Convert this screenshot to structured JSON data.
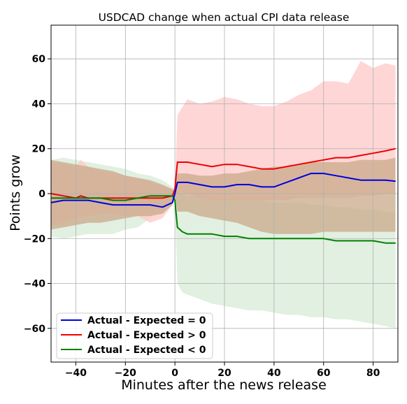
{
  "chart_data": {
    "type": "line",
    "title": "USDCAD change when actual CPI data release",
    "xlabel": "Minutes after the news release",
    "ylabel": "Points grow",
    "xlim": [
      -50,
      90
    ],
    "ylim": [
      -75,
      75
    ],
    "xticks": [
      -40,
      -20,
      0,
      20,
      40,
      60,
      80
    ],
    "yticks": [
      -60,
      -40,
      -20,
      0,
      20,
      40,
      60
    ],
    "grid": true,
    "legend_position": "lower-left",
    "series": [
      {
        "name": "Actual - Expected = 0",
        "color": "#0000dd",
        "band_color": "#c9a98a",
        "x": [
          -50,
          -45,
          -40,
          -35,
          -30,
          -25,
          -20,
          -15,
          -10,
          -5,
          -1,
          0,
          1,
          5,
          10,
          15,
          20,
          25,
          30,
          35,
          40,
          45,
          50,
          55,
          60,
          65,
          70,
          75,
          80,
          85,
          89
        ],
        "values": [
          -4,
          -3,
          -3,
          -3,
          -4,
          -5,
          -5,
          -5,
          -5,
          -6,
          -4,
          0,
          5,
          5,
          4,
          3,
          3,
          4,
          4,
          3,
          3,
          5,
          7,
          9,
          9,
          8,
          7,
          6,
          6,
          6,
          5.5
        ],
        "lower": [
          -16,
          -15,
          -14,
          -13,
          -13,
          -12,
          -11,
          -10,
          -10,
          -9,
          -5,
          -1,
          -8,
          -8,
          -10,
          -11,
          -12,
          -13,
          -15,
          -17,
          -18,
          -18,
          -18,
          -18,
          -17,
          -17,
          -17,
          -17,
          -17,
          -17,
          -17
        ],
        "upper": [
          15,
          14,
          13,
          12,
          11,
          10,
          8,
          7,
          6,
          4,
          2,
          1,
          9,
          9,
          8,
          8,
          9,
          9,
          10,
          11,
          12,
          12,
          13,
          14,
          14,
          14,
          14,
          15,
          15,
          15,
          16
        ]
      },
      {
        "name": "Actual - Expected > 0",
        "color": "#ee0000",
        "band_color": "#ffc8c8",
        "x": [
          -50,
          -45,
          -40,
          -38,
          -35,
          -30,
          -25,
          -20,
          -15,
          -10,
          -5,
          -1,
          0,
          1,
          5,
          10,
          15,
          20,
          25,
          30,
          35,
          40,
          45,
          50,
          55,
          60,
          65,
          70,
          75,
          80,
          85,
          89
        ],
        "values": [
          0,
          -1,
          -2,
          -1,
          -2,
          -2,
          -2,
          -2,
          -2,
          -2,
          -2,
          -1,
          2,
          14,
          14,
          13,
          12,
          13,
          13,
          12,
          11,
          11,
          12,
          13,
          14,
          15,
          16,
          16,
          17,
          18,
          19,
          20
        ],
        "lower": [
          -14,
          -13,
          -11,
          -10,
          -10,
          -9,
          -9,
          -10,
          -10,
          -13,
          -11,
          -5,
          -1,
          0,
          0,
          -2,
          -3,
          -3,
          -3,
          -3,
          -3,
          -3,
          -3,
          -2,
          -2,
          -2,
          -2,
          -2,
          -1,
          -1,
          0,
          0
        ],
        "upper": [
          14,
          13,
          12,
          15,
          12,
          10,
          9,
          8,
          7,
          5,
          3,
          2,
          3,
          35,
          42,
          40,
          41,
          43,
          42,
          40,
          39,
          39,
          41,
          44,
          46,
          50,
          50,
          49,
          59,
          56,
          58,
          57
        ]
      },
      {
        "name": "Actual - Expected < 0",
        "color": "#008000",
        "band_color": "#d4e9d4",
        "x": [
          -50,
          -45,
          -40,
          -35,
          -30,
          -25,
          -20,
          -15,
          -10,
          -5,
          -1,
          0,
          1,
          3,
          5,
          10,
          15,
          20,
          25,
          30,
          35,
          40,
          45,
          50,
          55,
          60,
          65,
          70,
          75,
          80,
          85,
          89
        ],
        "values": [
          -2,
          -2,
          -2,
          -2,
          -2,
          -3,
          -3,
          -2,
          -1,
          -1,
          -1,
          -3,
          -15,
          -17,
          -18,
          -18,
          -18,
          -19,
          -19,
          -20,
          -20,
          -20,
          -20,
          -20,
          -20,
          -20,
          -21,
          -21,
          -21,
          -21,
          -22,
          -22
        ],
        "lower": [
          -19,
          -20,
          -19,
          -18,
          -18,
          -18,
          -16,
          -15,
          -11,
          -6,
          -3,
          -4,
          -40,
          -44,
          -45,
          -47,
          -49,
          -50,
          -51,
          -52,
          -52,
          -53,
          -54,
          -54,
          -55,
          -55,
          -56,
          -56,
          -57,
          -58,
          -59,
          -60
        ],
        "upper": [
          15,
          16,
          15,
          14,
          13,
          12,
          11,
          9,
          8,
          6,
          3,
          1,
          0,
          0,
          -1,
          -1,
          -2,
          -2,
          -3,
          -3,
          -3,
          -4,
          -4,
          -4,
          -5,
          -5,
          -6,
          -6,
          -7,
          -7,
          -8,
          -8
        ]
      }
    ]
  }
}
